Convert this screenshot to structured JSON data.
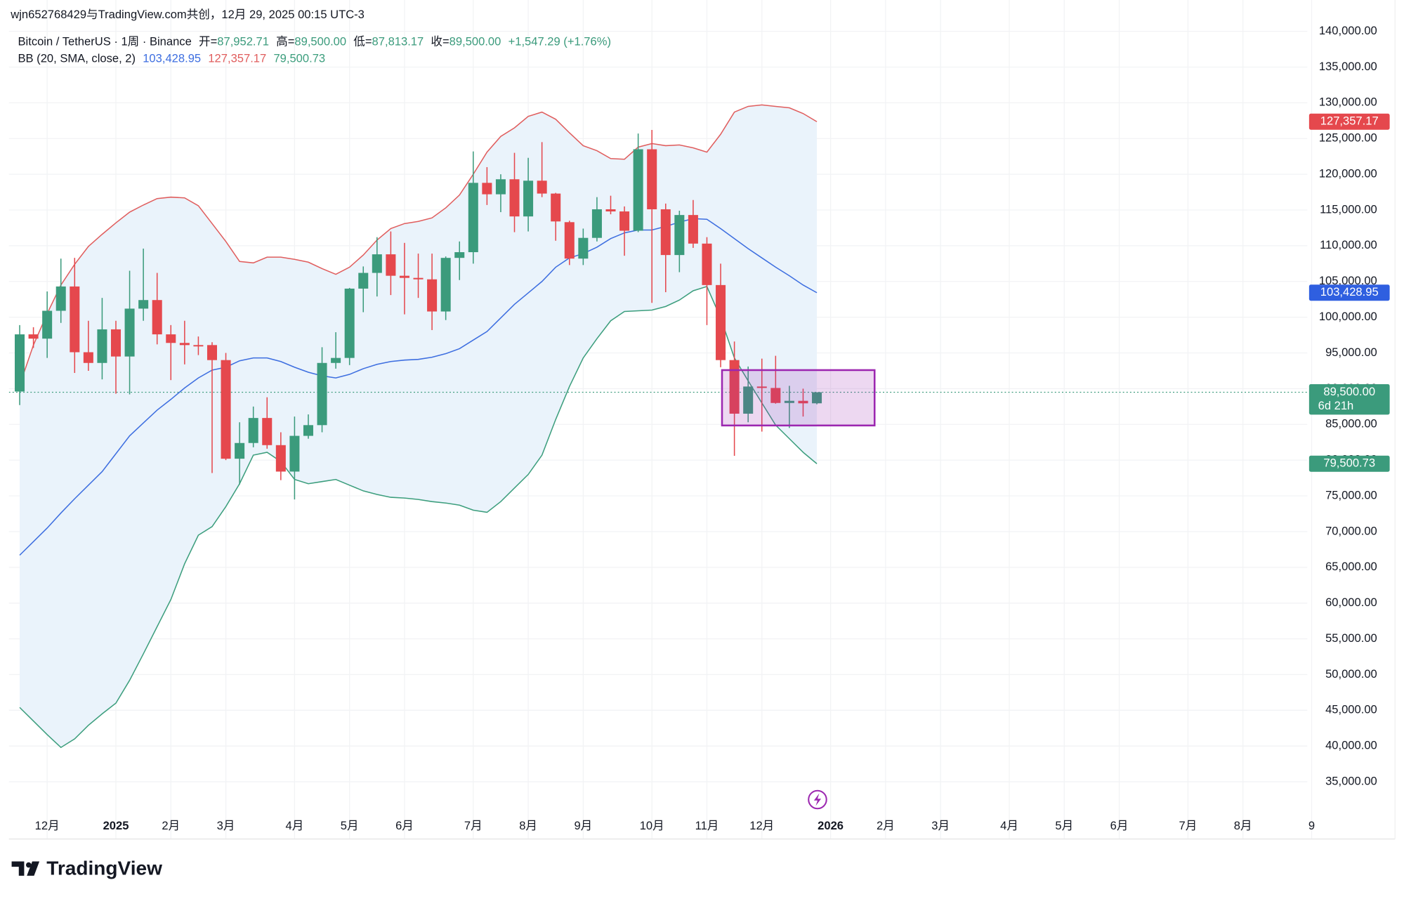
{
  "header": {
    "text": "wjn652768429与TradingView.com共创，12月 29, 2025 00:15 UTC-3"
  },
  "chart_data": {
    "type": "candlestick",
    "legend": {
      "symbol": "Bitcoin / TetherUS · 1周 · Binance",
      "items": [
        {
          "label": "开=",
          "value": "87,952.71"
        },
        {
          "label": "高=",
          "value": "89,500.00"
        },
        {
          "label": "低=",
          "value": "87,813.17"
        },
        {
          "label": "收=",
          "value": "89,500.00"
        }
      ],
      "change": "+1,547.29 (+1.76%)"
    },
    "up_color": "#3b9b7c",
    "down_color": "#e5484d",
    "categories": [
      null,
      null,
      "12月",
      null,
      null,
      null,
      null,
      "2025",
      null,
      null,
      null,
      "2月",
      null,
      null,
      null,
      "3月",
      null,
      null,
      null,
      null,
      "4月",
      null,
      null,
      null,
      "5月",
      null,
      null,
      null,
      "6月",
      null,
      null,
      null,
      null,
      "7月",
      null,
      null,
      null,
      "8月",
      null,
      null,
      null,
      "9月",
      null,
      null,
      null,
      null,
      "10月",
      null,
      null,
      null,
      "11月",
      null,
      null,
      null,
      "12月",
      null,
      null,
      null,
      null,
      "2026",
      null,
      null,
      null,
      "2月",
      null,
      null,
      null,
      "3月",
      null,
      null,
      null,
      null,
      "4月",
      null,
      null,
      null,
      "5月",
      null,
      null,
      null,
      "6月",
      null,
      null,
      null,
      null,
      "7月",
      null,
      null,
      null,
      "8月",
      null,
      null,
      null,
      null,
      "9"
    ],
    "open": [
      89600,
      97600,
      97000,
      100900,
      104300,
      95100,
      93600,
      98300,
      94500,
      101200,
      102400,
      97600,
      96400,
      96100,
      96100,
      94000,
      80200,
      82400,
      85900,
      82100,
      78400,
      83400,
      84900,
      93600,
      94300,
      104000,
      106200,
      108800,
      105800,
      105500,
      105300,
      100800,
      108300,
      109100,
      118800,
      117200,
      119300,
      114100,
      119100,
      117300,
      113300,
      108200,
      111100,
      115100,
      114800,
      112100,
      123500,
      115100,
      108700,
      114300,
      110300,
      104500,
      94000,
      86500,
      90300,
      90100,
      88000,
      88300,
      87952.71,
      null,
      null,
      null,
      null,
      null,
      null,
      null,
      null,
      null,
      null,
      null,
      null,
      null,
      null,
      null,
      null,
      null,
      null,
      null,
      null,
      null,
      null,
      null,
      null,
      null,
      null,
      null,
      null,
      null,
      null,
      null,
      null,
      null,
      null,
      null,
      null
    ],
    "high": [
      98900,
      98600,
      103600,
      108200,
      108300,
      99500,
      102700,
      99500,
      106500,
      109600,
      106200,
      98900,
      99500,
      97300,
      96500,
      95000,
      85300,
      87500,
      88800,
      83900,
      86100,
      86400,
      95800,
      97900,
      104100,
      107100,
      111200,
      112000,
      110400,
      108900,
      108900,
      108500,
      110600,
      123200,
      121000,
      120000,
      123000,
      122300,
      124500,
      117400,
      113500,
      112400,
      116800,
      117000,
      115500,
      125700,
      126200,
      115900,
      114900,
      116400,
      111200,
      107500,
      96600,
      93100,
      94200,
      94600,
      90400,
      90000,
      89500,
      null,
      null,
      null,
      null,
      null,
      null,
      null,
      null,
      null,
      null,
      null,
      null,
      null,
      null,
      null,
      null,
      null,
      null,
      null,
      null,
      null,
      null,
      null,
      null,
      null,
      null,
      null,
      null,
      null,
      null,
      null,
      null,
      null,
      null,
      null,
      null
    ],
    "low": [
      87700,
      95700,
      94300,
      99200,
      92200,
      92500,
      91300,
      89300,
      89200,
      99500,
      96200,
      91200,
      93400,
      94700,
      78200,
      80000,
      76600,
      81800,
      81600,
      77200,
      74500,
      83000,
      83900,
      92800,
      93300,
      100700,
      102900,
      103100,
      100400,
      102700,
      98200,
      99600,
      105200,
      107500,
      115700,
      114700,
      111900,
      112000,
      116800,
      110700,
      107300,
      107300,
      110600,
      114400,
      108600,
      111900,
      102000,
      103500,
      106300,
      109700,
      98900,
      93000,
      80600,
      85300,
      84000,
      87900,
      84500,
      86100,
      87813.17,
      null,
      null,
      null,
      null,
      null,
      null,
      null,
      null,
      null,
      null,
      null,
      null,
      null,
      null,
      null,
      null,
      null,
      null,
      null,
      null,
      null,
      null,
      null,
      null,
      null,
      null,
      null,
      null,
      null,
      null,
      null,
      null,
      null,
      null,
      null,
      null
    ],
    "close": [
      97600,
      97000,
      100900,
      104300,
      95100,
      93600,
      98300,
      94500,
      101200,
      102400,
      97600,
      96400,
      96100,
      96000,
      94000,
      80200,
      82400,
      85900,
      82100,
      78400,
      83400,
      84900,
      93600,
      94300,
      104000,
      106200,
      108800,
      105800,
      105500,
      105300,
      100800,
      108300,
      109100,
      118800,
      117200,
      119300,
      114100,
      119100,
      117300,
      113400,
      108200,
      111100,
      115100,
      114800,
      112100,
      123500,
      115100,
      108700,
      114300,
      110300,
      104500,
      94000,
      86500,
      90300,
      90100,
      88000,
      88300,
      87950,
      89500,
      null,
      null,
      null,
      null,
      null,
      null,
      null,
      null,
      null,
      null,
      null,
      null,
      null,
      null,
      null,
      null,
      null,
      null,
      null,
      null,
      null,
      null,
      null,
      null,
      null,
      null,
      null,
      null,
      null,
      null,
      null,
      null,
      null,
      null,
      null,
      null
    ],
    "bands": {
      "label": "BB (20, SMA, close, 2)",
      "upper_color": "#e05d5d",
      "basis_color": "#3d6ee0",
      "lower_color": "#3c9e7d",
      "fill": "#eaf3fb",
      "upper": [
        90500,
        96100,
        100500,
        104500,
        107400,
        109900,
        111600,
        113200,
        114700,
        115700,
        116600,
        116800,
        116700,
        115600,
        113100,
        110600,
        107800,
        107600,
        108400,
        108400,
        108100,
        107700,
        106800,
        106000,
        107000,
        108700,
        110800,
        112400,
        113100,
        113400,
        113900,
        115300,
        117100,
        120000,
        123100,
        125300,
        126500,
        128100,
        128700,
        127700,
        125800,
        124000,
        123300,
        122200,
        122100,
        123800,
        124300,
        124000,
        124100,
        123700,
        123100,
        125600,
        128700,
        129500,
        129700,
        129500,
        129300,
        128500,
        127357.17,
        null,
        null,
        null,
        null,
        null,
        null,
        null,
        null,
        null,
        null,
        null,
        null,
        null,
        null,
        null,
        null,
        null,
        null,
        null,
        null,
        null,
        null,
        null,
        null,
        null,
        null,
        null,
        null,
        null,
        null,
        null,
        null,
        null,
        null,
        null,
        null
      ],
      "basis": [
        66700,
        68600,
        70500,
        72600,
        74600,
        76500,
        78400,
        80900,
        83400,
        85200,
        87000,
        88500,
        90100,
        91500,
        92600,
        93000,
        93900,
        94300,
        94300,
        93800,
        93000,
        92300,
        91800,
        91500,
        92000,
        92800,
        93400,
        93800,
        94000,
        94100,
        94400,
        94900,
        95600,
        96800,
        98000,
        99900,
        101800,
        103400,
        105000,
        107000,
        108300,
        108900,
        109800,
        111000,
        111800,
        112200,
        112200,
        112700,
        113300,
        113800,
        113700,
        112400,
        111000,
        109600,
        108300,
        107000,
        105800,
        104500,
        103428.95,
        null,
        null,
        null,
        null,
        null,
        null,
        null,
        null,
        null,
        null,
        null,
        null,
        null,
        null,
        null,
        null,
        null,
        null,
        null,
        null,
        null,
        null,
        null,
        null,
        null,
        null,
        null,
        null,
        null,
        null,
        null,
        null,
        null,
        null,
        null,
        null
      ],
      "lower": [
        45400,
        43500,
        41600,
        39800,
        41000,
        42900,
        44500,
        46000,
        49200,
        52900,
        56700,
        60500,
        65500,
        69500,
        70700,
        73500,
        76700,
        80700,
        81100,
        79800,
        77300,
        76700,
        77000,
        77300,
        76500,
        75700,
        75200,
        74800,
        74700,
        74500,
        74200,
        74000,
        73700,
        73000,
        72700,
        74200,
        76100,
        78000,
        80700,
        85700,
        90300,
        94300,
        97000,
        99500,
        100800,
        100900,
        101000,
        101500,
        102400,
        103700,
        104300,
        99900,
        94300,
        91100,
        88000,
        84900,
        83000,
        81100,
        79500.73,
        null,
        null,
        null,
        null,
        null,
        null,
        null,
        null,
        null,
        null,
        null,
        null,
        null,
        null,
        null,
        null,
        null,
        null,
        null,
        null,
        null,
        null,
        null,
        null,
        null,
        null,
        null,
        null,
        null,
        null,
        null,
        null,
        null,
        null,
        null,
        null
      ]
    },
    "ylim": [
      31000,
      141000
    ],
    "yticks": [
      {
        "value": 140000,
        "label": "140,000.00"
      },
      {
        "value": 135000,
        "label": "135,000.00"
      },
      {
        "value": 130000,
        "label": "130,000.00"
      },
      {
        "value": 125000,
        "label": "125,000.00"
      },
      {
        "value": 120000,
        "label": "120,000.00"
      },
      {
        "value": 115000,
        "label": "115,000.00"
      },
      {
        "value": 110000,
        "label": "110,000.00"
      },
      {
        "value": 105000,
        "label": "105,000.00"
      },
      {
        "value": 100000,
        "label": "100,000.00"
      },
      {
        "value": 95000,
        "label": "95,000.00"
      },
      {
        "value": 90000,
        "label": "90,000.00"
      },
      {
        "value": 85000,
        "label": "85,000.00"
      },
      {
        "value": 80000,
        "label": "80,000.00"
      },
      {
        "value": 75000,
        "label": "75,000.00"
      },
      {
        "value": 70000,
        "label": "70,000.00"
      },
      {
        "value": 65000,
        "label": "65,000.00"
      },
      {
        "value": 60000,
        "label": "60,000.00"
      },
      {
        "value": 55000,
        "label": "55,000.00"
      },
      {
        "value": 50000,
        "label": "50,000.00"
      },
      {
        "value": 45000,
        "label": "45,000.00"
      },
      {
        "value": 40000,
        "label": "40,000.00"
      },
      {
        "value": 35000,
        "label": "35,000.00"
      }
    ],
    "grid": true,
    "price_labels": [
      {
        "value": 127357.17,
        "label": "127,357.17",
        "color": "#e5484d"
      },
      {
        "value": 103428.95,
        "label": "103,428.95",
        "color": "#2f5fe0"
      },
      {
        "value": 89500,
        "label": "89,500.00",
        "sublabel": "6d 21h",
        "color": "#3b9b7c"
      },
      {
        "value": 79500.73,
        "label": "79,500.73",
        "color": "#3b9b7c"
      }
    ],
    "highlight": {
      "x": [
        51.1,
        62.2
      ],
      "y": [
        84850,
        92600
      ],
      "color": "#9c27b0"
    }
  },
  "footer": {
    "logo": "TradingView"
  }
}
